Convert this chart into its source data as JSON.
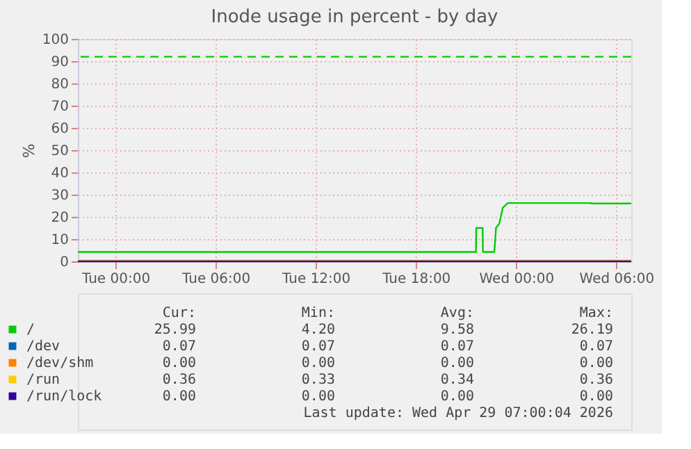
{
  "chart_data": {
    "type": "line",
    "title": "Inode usage in percent - by day",
    "ylabel": "%",
    "xlim": [
      "2026-04-27T21:45",
      "2026-04-29T06:54"
    ],
    "xticks": [
      {
        "value": "2026-04-28T00:00",
        "label": "Tue 00:00"
      },
      {
        "value": "2026-04-28T06:00",
        "label": "Tue 06:00"
      },
      {
        "value": "2026-04-28T12:00",
        "label": "Tue 12:00"
      },
      {
        "value": "2026-04-28T18:00",
        "label": "Tue 18:00"
      },
      {
        "value": "2026-04-29T00:00",
        "label": "Wed 00:00"
      },
      {
        "value": "2026-04-29T06:00",
        "label": "Wed 06:00"
      }
    ],
    "ylim": [
      0,
      100
    ],
    "yticks": [
      0,
      10,
      20,
      30,
      40,
      50,
      60,
      70,
      80,
      90,
      100
    ],
    "series": [
      {
        "name": "/",
        "color": "#00cc00",
        "x": [
          "2026-04-27T21:45",
          "2026-04-28T21:36",
          "2026-04-28T21:37",
          "2026-04-28T22:00",
          "2026-04-28T22:01",
          "2026-04-28T22:42",
          "2026-04-28T22:48",
          "2026-04-28T23:00",
          "2026-04-28T23:12",
          "2026-04-28T23:30",
          "2026-04-29T04:30",
          "2026-04-29T04:31",
          "2026-04-29T06:54"
        ],
        "values": [
          4.2,
          4.2,
          15,
          15,
          4.2,
          4.2,
          15,
          17,
          24,
          26.2,
          26.2,
          26.0,
          26.0
        ]
      },
      {
        "name": "/dev",
        "color": "#0066b3",
        "values": [
          null,
          null
        ]
      },
      {
        "name": "/dev/shm",
        "color": "#ff8000",
        "values": [
          null,
          null
        ]
      },
      {
        "name": "/run",
        "color": "#ffcc00",
        "x": [
          "2026-04-27T21:45",
          "2026-04-29T06:54"
        ],
        "values": [
          0.4,
          0.4
        ]
      },
      {
        "name": "/run/lock",
        "color": "#330099",
        "x": [
          "2026-04-27T21:45",
          "2026-04-29T06:54"
        ],
        "values": [
          0,
          0
        ]
      }
    ],
    "ref_lines": [
      {
        "axis": "y",
        "value": 92,
        "color": "#00cc00",
        "line_style": "dashed"
      }
    ],
    "annotations": [
      "Cur:",
      "Min:",
      "Avg:",
      "Max:",
      "25.99",
      "4.20",
      "9.58",
      "26.19",
      "0.07",
      "0.07",
      "0.07",
      "0.07",
      "0.00",
      "0.00",
      "0.00",
      "0.00",
      "0.36",
      "0.33",
      "0.34",
      "0.36",
      "0.00",
      "0.00",
      "0.00",
      "0.00",
      "Last update: Wed Apr 29 07:00:04 2026"
    ],
    "grid": true,
    "legend": "bottom",
    "line_style": "solid",
    "marker": "none"
  }
}
